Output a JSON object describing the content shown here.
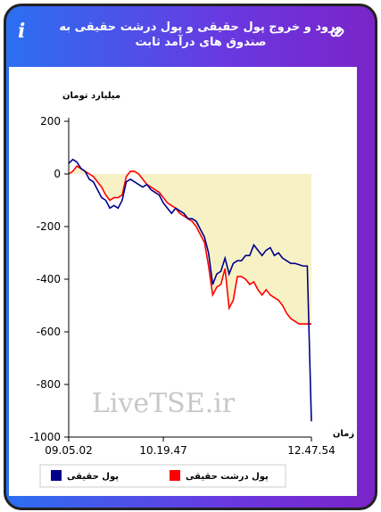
{
  "header": {
    "title": "ورود و خروج پول حقیقی و پول درشت حقیقی به صندوق های درآمد ثابت"
  },
  "chart_data": {
    "type": "line",
    "y_label": "میلیارد تومان",
    "x_label": "زمان",
    "watermark": "LiveTSE.ir",
    "categories": [
      "09.05.02",
      null,
      null,
      null,
      null,
      null,
      null,
      null,
      null,
      null,
      null,
      null,
      null,
      null,
      null,
      null,
      null,
      null,
      null,
      null,
      null,
      null,
      null,
      "10.19.47",
      null,
      null,
      null,
      null,
      null,
      null,
      null,
      null,
      null,
      null,
      null,
      null,
      null,
      null,
      null,
      null,
      null,
      null,
      null,
      null,
      null,
      null,
      null,
      null,
      null,
      null,
      null,
      null,
      null,
      null,
      null,
      null,
      null,
      null,
      null,
      "12.47.54"
    ],
    "series": [
      {
        "name": "پول حقیقی",
        "color": "#00008b",
        "values": [
          40,
          55,
          45,
          20,
          10,
          -20,
          -30,
          -60,
          -90,
          -100,
          -130,
          -120,
          -130,
          -100,
          -30,
          -20,
          -30,
          -40,
          -50,
          -40,
          -60,
          -70,
          -80,
          -110,
          -130,
          -150,
          -130,
          -140,
          -150,
          -170,
          -170,
          -180,
          -210,
          -240,
          -300,
          -420,
          -380,
          -370,
          -320,
          -380,
          -340,
          -330,
          -330,
          -310,
          -310,
          -270,
          -290,
          -310,
          -290,
          -280,
          -310,
          -300,
          -320,
          -330,
          -340,
          -340,
          -345,
          -350,
          -350,
          -940
        ]
      },
      {
        "name": "پول درشت حقیقی",
        "color": "#ff0000",
        "values": [
          0,
          10,
          30,
          20,
          10,
          0,
          -10,
          -30,
          -50,
          -80,
          -100,
          -90,
          -90,
          -80,
          -10,
          10,
          10,
          0,
          -20,
          -40,
          -50,
          -60,
          -70,
          -90,
          -110,
          -120,
          -130,
          -150,
          -160,
          -170,
          -180,
          -200,
          -230,
          -260,
          -350,
          -460,
          -430,
          -420,
          -360,
          -510,
          -480,
          -390,
          -390,
          -400,
          -420,
          -410,
          -440,
          -460,
          -440,
          -460,
          -470,
          -480,
          -500,
          -530,
          -550,
          -560,
          -570,
          -570,
          -570,
          -570
        ]
      }
    ],
    "area_color": "#f7f2c6",
    "ylim": [
      -1000,
      200
    ],
    "yticks": [
      -1000,
      -800,
      -600,
      -400,
      -200,
      0,
      200
    ],
    "grid": false,
    "legend": "bottom"
  }
}
